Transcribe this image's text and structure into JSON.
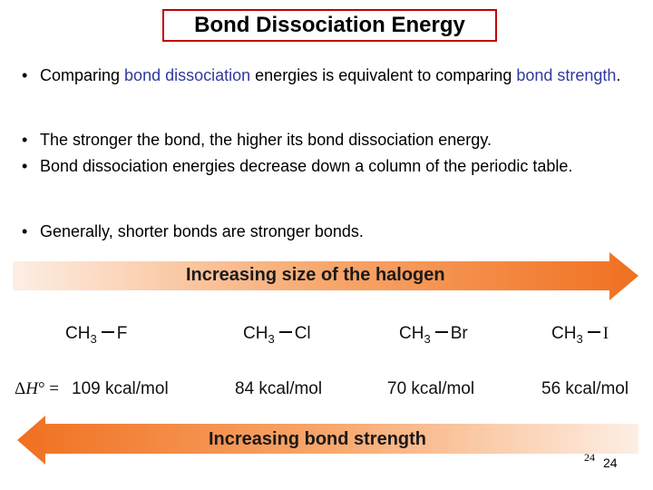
{
  "title": "Bond Dissociation Energy",
  "bullets": {
    "b1": {
      "pre": "Comparing ",
      "blue1": "bond dissociation",
      "mid": " energies is equivalent to comparing ",
      "blue2": "bond strength",
      "post": "."
    },
    "b2": "The stronger the bond, the higher its bond dissociation energy.",
    "b3": "Bond dissociation energies decrease down a column of the periodic table.",
    "b4": "Generally, shorter bonds are stronger bonds."
  },
  "bullet_glyph": "•",
  "arrow_top_label": "Increasing size of the halogen",
  "arrow_bottom_label": "Increasing bond strength",
  "molecules": [
    {
      "base": "CH",
      "sub": "3",
      "atom": "F"
    },
    {
      "base": "CH",
      "sub": "3",
      "atom": "Cl"
    },
    {
      "base": "CH",
      "sub": "3",
      "atom": "Br"
    },
    {
      "base": "CH",
      "sub": "3",
      "atom": "I"
    }
  ],
  "dh_label": "ΔH° =",
  "energies": [
    "109 kcal/mol",
    "84 kcal/mol",
    "70 kcal/mol",
    "56 kcal/mol"
  ],
  "page_numbers": {
    "small": "24",
    "large": "24"
  },
  "colors": {
    "title_border": "#c00000",
    "blue_text": "#2f3a9e",
    "arrow_dark": "#f07020",
    "arrow_light": "#fde8d8"
  }
}
